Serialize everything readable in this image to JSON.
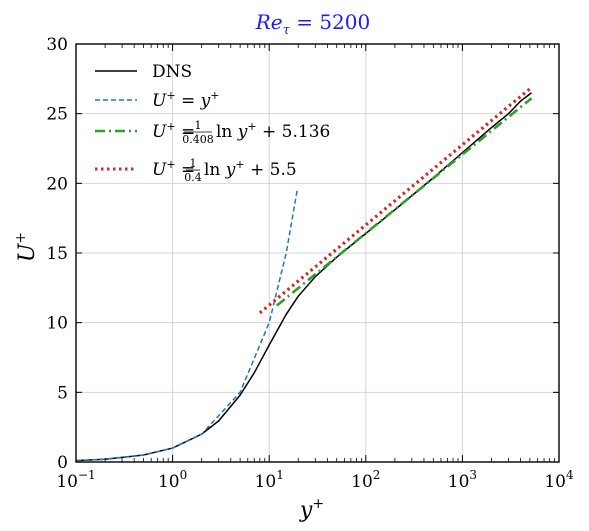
{
  "chart_data": {
    "type": "line",
    "title": "Re_τ = 5200",
    "xlabel": "y⁺",
    "ylabel": "U⁺",
    "xscale": "log",
    "xlim": [
      0.1,
      10000
    ],
    "ylim": [
      0,
      30
    ],
    "xticks": [
      {
        "value": 0.1,
        "base": "10",
        "exp": "−1"
      },
      {
        "value": 1,
        "base": "10",
        "exp": "0"
      },
      {
        "value": 10,
        "base": "10",
        "exp": "1"
      },
      {
        "value": 100,
        "base": "10",
        "exp": "2"
      },
      {
        "value": 1000,
        "base": "10",
        "exp": "3"
      },
      {
        "value": 10000,
        "base": "10",
        "exp": "4"
      }
    ],
    "yticks": [
      0,
      5,
      10,
      15,
      20,
      25,
      30
    ],
    "grid": true,
    "legend_position": "top-left",
    "series": [
      {
        "name": "DNS",
        "color": "#000000",
        "style": "solid",
        "x": [
          0.1,
          0.2,
          0.5,
          1,
          2,
          3,
          5,
          7,
          10,
          15,
          20,
          30,
          50,
          100,
          200,
          500,
          1000,
          2000,
          3000,
          4000,
          5200
        ],
        "y": [
          0.1,
          0.2,
          0.5,
          1.0,
          2.0,
          2.95,
          4.8,
          6.4,
          8.4,
          10.6,
          11.9,
          13.3,
          14.7,
          16.4,
          18.1,
          20.4,
          22.2,
          24.0,
          25.0,
          25.9,
          26.5
        ]
      },
      {
        "name": "U⁺ = y⁺",
        "color": "#1f77b4",
        "style": "dashed",
        "x": [
          0.1,
          0.2,
          0.5,
          1,
          2,
          5,
          10,
          15,
          19.6
        ],
        "y": [
          0.1,
          0.2,
          0.5,
          1,
          2,
          5,
          10,
          15,
          19.6
        ]
      },
      {
        "name": "U⁺ = (1/0.408) ln y⁺ + 5.136",
        "color": "#2ca02c",
        "style": "dashdot",
        "x": [
          12,
          30,
          100,
          300,
          1000,
          3000,
          5200
        ],
        "y": [
          11.23,
          13.47,
          16.42,
          19.12,
          22.07,
          24.76,
          26.11
        ]
      },
      {
        "name": "U⁺ = (1/0.4) ln y⁺ + 5.5",
        "color": "#d62728",
        "style": "dotted",
        "x": [
          8,
          20,
          50,
          100,
          300,
          1000,
          3000,
          5200
        ],
        "y": [
          10.7,
          12.99,
          15.28,
          17.01,
          19.76,
          22.77,
          25.52,
          26.88
        ]
      }
    ]
  }
}
